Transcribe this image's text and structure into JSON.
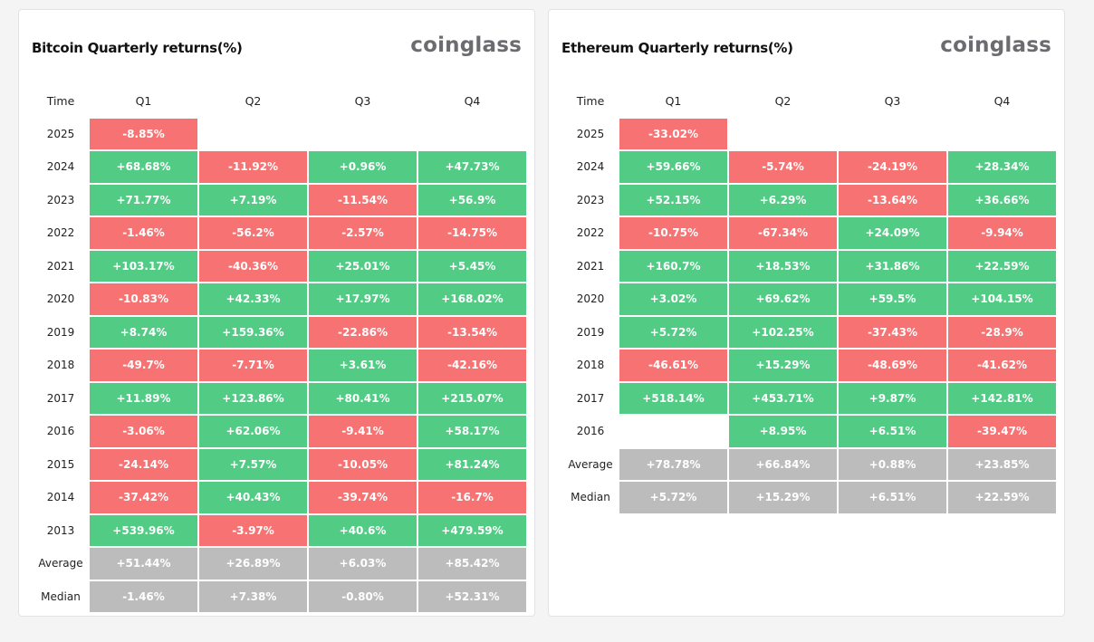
{
  "colors": {
    "positive": "#52cc85",
    "negative": "#f77272",
    "summary": "#bcbcbc"
  },
  "btc": {
    "title": "Bitcoin Quarterly returns(%)",
    "brand": "coinglass",
    "headers": [
      "Time",
      "Q1",
      "Q2",
      "Q3",
      "Q4"
    ],
    "rows": [
      {
        "label": "2025",
        "cells": [
          "-8.85%",
          "",
          "",
          ""
        ]
      },
      {
        "label": "2024",
        "cells": [
          "+68.68%",
          "-11.92%",
          "+0.96%",
          "+47.73%"
        ]
      },
      {
        "label": "2023",
        "cells": [
          "+71.77%",
          "+7.19%",
          "-11.54%",
          "+56.9%"
        ]
      },
      {
        "label": "2022",
        "cells": [
          "-1.46%",
          "-56.2%",
          "-2.57%",
          "-14.75%"
        ]
      },
      {
        "label": "2021",
        "cells": [
          "+103.17%",
          "-40.36%",
          "+25.01%",
          "+5.45%"
        ]
      },
      {
        "label": "2020",
        "cells": [
          "-10.83%",
          "+42.33%",
          "+17.97%",
          "+168.02%"
        ]
      },
      {
        "label": "2019",
        "cells": [
          "+8.74%",
          "+159.36%",
          "-22.86%",
          "-13.54%"
        ]
      },
      {
        "label": "2018",
        "cells": [
          "-49.7%",
          "-7.71%",
          "+3.61%",
          "-42.16%"
        ]
      },
      {
        "label": "2017",
        "cells": [
          "+11.89%",
          "+123.86%",
          "+80.41%",
          "+215.07%"
        ]
      },
      {
        "label": "2016",
        "cells": [
          "-3.06%",
          "+62.06%",
          "-9.41%",
          "+58.17%"
        ]
      },
      {
        "label": "2015",
        "cells": [
          "-24.14%",
          "+7.57%",
          "-10.05%",
          "+81.24%"
        ]
      },
      {
        "label": "2014",
        "cells": [
          "-37.42%",
          "+40.43%",
          "-39.74%",
          "-16.7%"
        ]
      },
      {
        "label": "2013",
        "cells": [
          "+539.96%",
          "-3.97%",
          "+40.6%",
          "+479.59%"
        ]
      }
    ],
    "summary": [
      {
        "label": "Average",
        "cells": [
          "+51.44%",
          "+26.89%",
          "+6.03%",
          "+85.42%"
        ]
      },
      {
        "label": "Median",
        "cells": [
          "-1.46%",
          "+7.38%",
          "-0.80%",
          "+52.31%"
        ]
      }
    ]
  },
  "eth": {
    "title": "Ethereum Quarterly returns(%)",
    "brand": "coinglass",
    "headers": [
      "Time",
      "Q1",
      "Q2",
      "Q3",
      "Q4"
    ],
    "rows": [
      {
        "label": "2025",
        "cells": [
          "-33.02%",
          "",
          "",
          ""
        ]
      },
      {
        "label": "2024",
        "cells": [
          "+59.66%",
          "-5.74%",
          "-24.19%",
          "+28.34%"
        ]
      },
      {
        "label": "2023",
        "cells": [
          "+52.15%",
          "+6.29%",
          "-13.64%",
          "+36.66%"
        ]
      },
      {
        "label": "2022",
        "cells": [
          "-10.75%",
          "-67.34%",
          "+24.09%",
          "-9.94%"
        ]
      },
      {
        "label": "2021",
        "cells": [
          "+160.7%",
          "+18.53%",
          "+31.86%",
          "+22.59%"
        ]
      },
      {
        "label": "2020",
        "cells": [
          "+3.02%",
          "+69.62%",
          "+59.5%",
          "+104.15%"
        ]
      },
      {
        "label": "2019",
        "cells": [
          "+5.72%",
          "+102.25%",
          "-37.43%",
          "-28.9%"
        ]
      },
      {
        "label": "2018",
        "cells": [
          "-46.61%",
          "+15.29%",
          "-48.69%",
          "-41.62%"
        ]
      },
      {
        "label": "2017",
        "cells": [
          "+518.14%",
          "+453.71%",
          "+9.87%",
          "+142.81%"
        ]
      },
      {
        "label": "2016",
        "cells": [
          "",
          "+8.95%",
          "+6.51%",
          "-39.47%"
        ]
      }
    ],
    "summary": [
      {
        "label": "Average",
        "cells": [
          "+78.78%",
          "+66.84%",
          "+0.88%",
          "+23.85%"
        ]
      },
      {
        "label": "Median",
        "cells": [
          "+5.72%",
          "+15.29%",
          "+6.51%",
          "+22.59%"
        ]
      }
    ]
  }
}
